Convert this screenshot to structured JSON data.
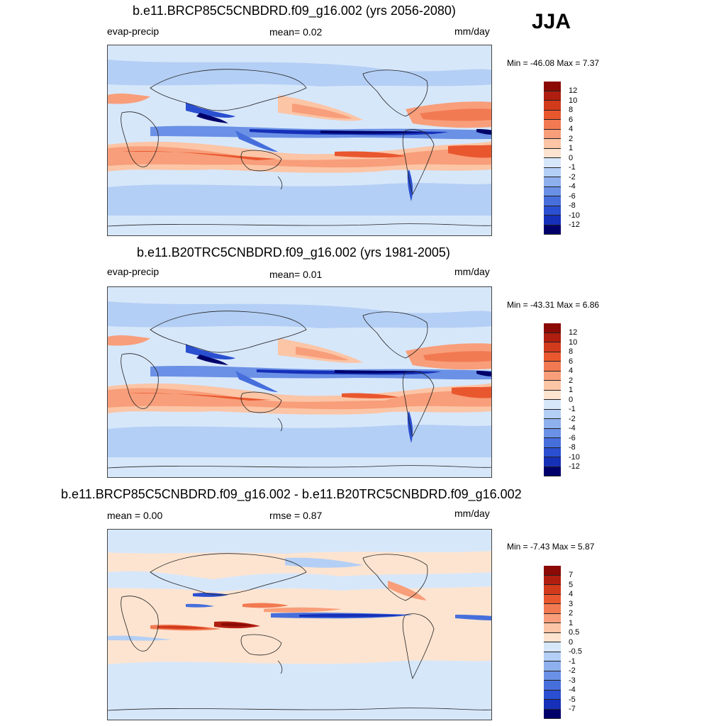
{
  "season": "JJA",
  "colors": {
    "pos": [
      "#fde4d0",
      "#fbc5a6",
      "#f89e7a",
      "#f27a52",
      "#e9572f",
      "#d23a1c",
      "#b01e10",
      "#8b0a05"
    ],
    "neg": [
      "#d7e7fa",
      "#b4cff5",
      "#8eb1ee",
      "#6a91e6",
      "#466fdc",
      "#2a4fd0",
      "#1630b8",
      "#081a98",
      "#00006b"
    ]
  },
  "panels": [
    {
      "title": "b.e11.BRCP85C5CNBDRD.f09_g16.002 (yrs 2056-2080)",
      "left_label": "evap-precip",
      "mid_label": "mean=   0.02",
      "units": "mm/day",
      "minmax": "Min = -46.08 Max =    7.37",
      "colorbar": [
        "12",
        "10",
        "8",
        "6",
        "4",
        "2",
        "1",
        "0",
        "-1",
        "-2",
        "-4",
        "-6",
        "-8",
        "-10",
        "-12"
      ]
    },
    {
      "title": "b.e11.B20TRC5CNBDRD.f09_g16.002 (yrs 1981-2005)",
      "left_label": "evap-precip",
      "mid_label": "mean=   0.01",
      "units": "mm/day",
      "minmax": "Min = -43.31 Max =    6.86",
      "colorbar": [
        "12",
        "10",
        "8",
        "6",
        "4",
        "2",
        "1",
        "0",
        "-1",
        "-2",
        "-4",
        "-6",
        "-8",
        "-10",
        "-12"
      ]
    },
    {
      "title": "b.e11.BRCP85C5CNBDRD.f09_g16.002 - b.e11.B20TRC5CNBDRD.f09_g16.002",
      "left_label": "mean =   0.00",
      "mid_label": "rmse =   0.87",
      "units": "mm/day",
      "minmax": "Min =  -7.43 Max =    5.87",
      "colorbar": [
        "7",
        "5",
        "4",
        "3",
        "2",
        "1",
        "0.5",
        "0",
        "-0.5",
        "-1",
        "-2",
        "-3",
        "-4",
        "-5",
        "-7"
      ]
    }
  ]
}
